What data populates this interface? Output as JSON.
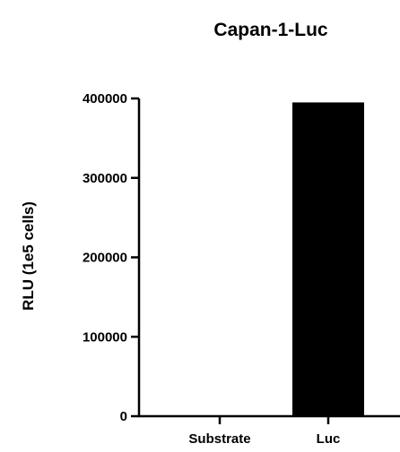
{
  "chart_data": {
    "type": "bar",
    "title": "Capan-1-Luc",
    "xlabel": "",
    "ylabel": "RLU (1e5 cells)",
    "categories": [
      "Substrate",
      "Luc"
    ],
    "values": [
      0,
      395000
    ],
    "ylim": [
      0,
      400000
    ],
    "yticks": [
      0,
      100000,
      200000,
      300000,
      400000
    ],
    "ytick_labels": [
      "0",
      "100000",
      "200000",
      "300000",
      "400000"
    ],
    "bar_color": "#000000",
    "grid": false
  }
}
